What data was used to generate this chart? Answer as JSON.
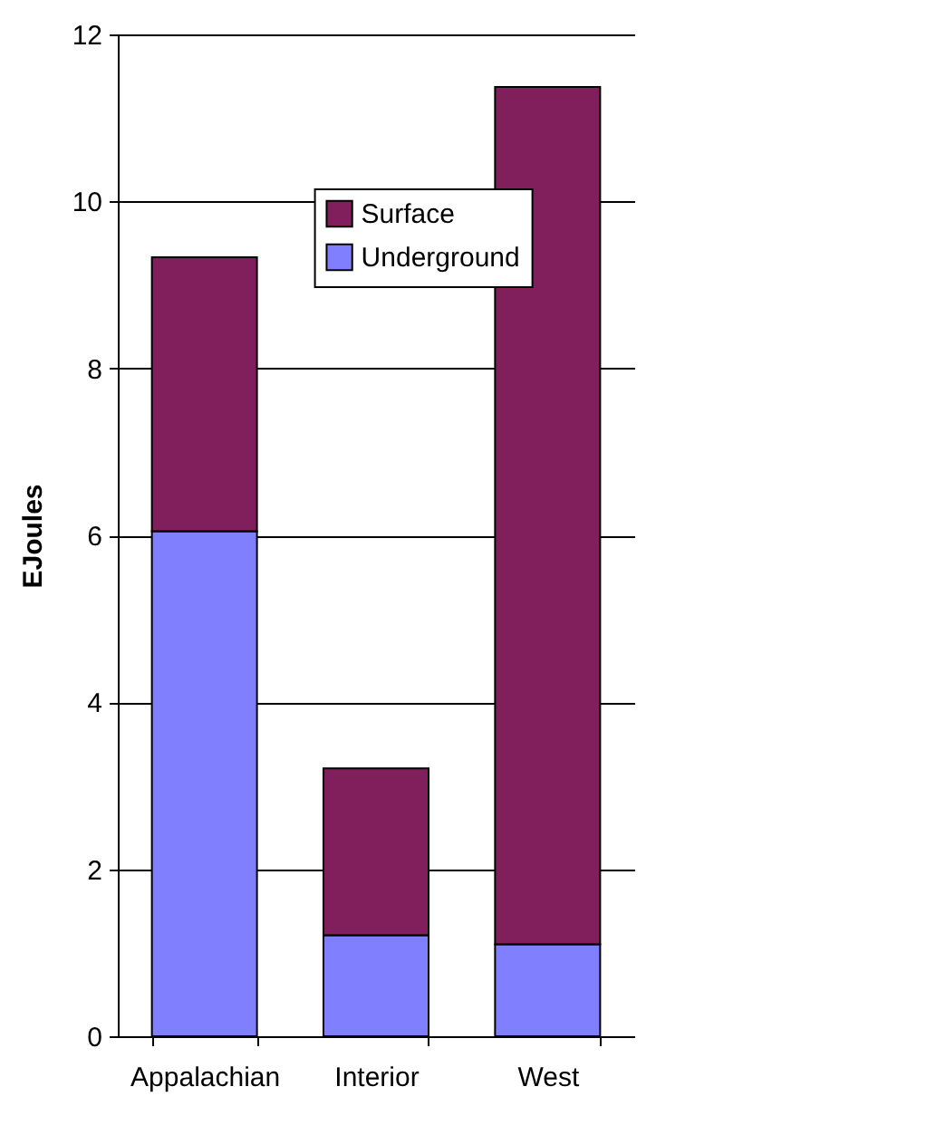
{
  "chart_data": {
    "type": "bar",
    "stacked": true,
    "ylabel": "EJoules",
    "categories": [
      "Appalachian",
      "Interior",
      "West"
    ],
    "series": [
      {
        "name": "Underground",
        "color": "#8080ff",
        "values": [
          6.05,
          1.21,
          1.1
        ]
      },
      {
        "name": "Surface",
        "color": "#801f5c",
        "values": [
          3.28,
          2.0,
          10.27
        ]
      }
    ],
    "ylim": [
      0,
      12
    ],
    "yticks": [
      0,
      2,
      4,
      6,
      8,
      10,
      12
    ],
    "grid": "y",
    "legend": "top"
  }
}
